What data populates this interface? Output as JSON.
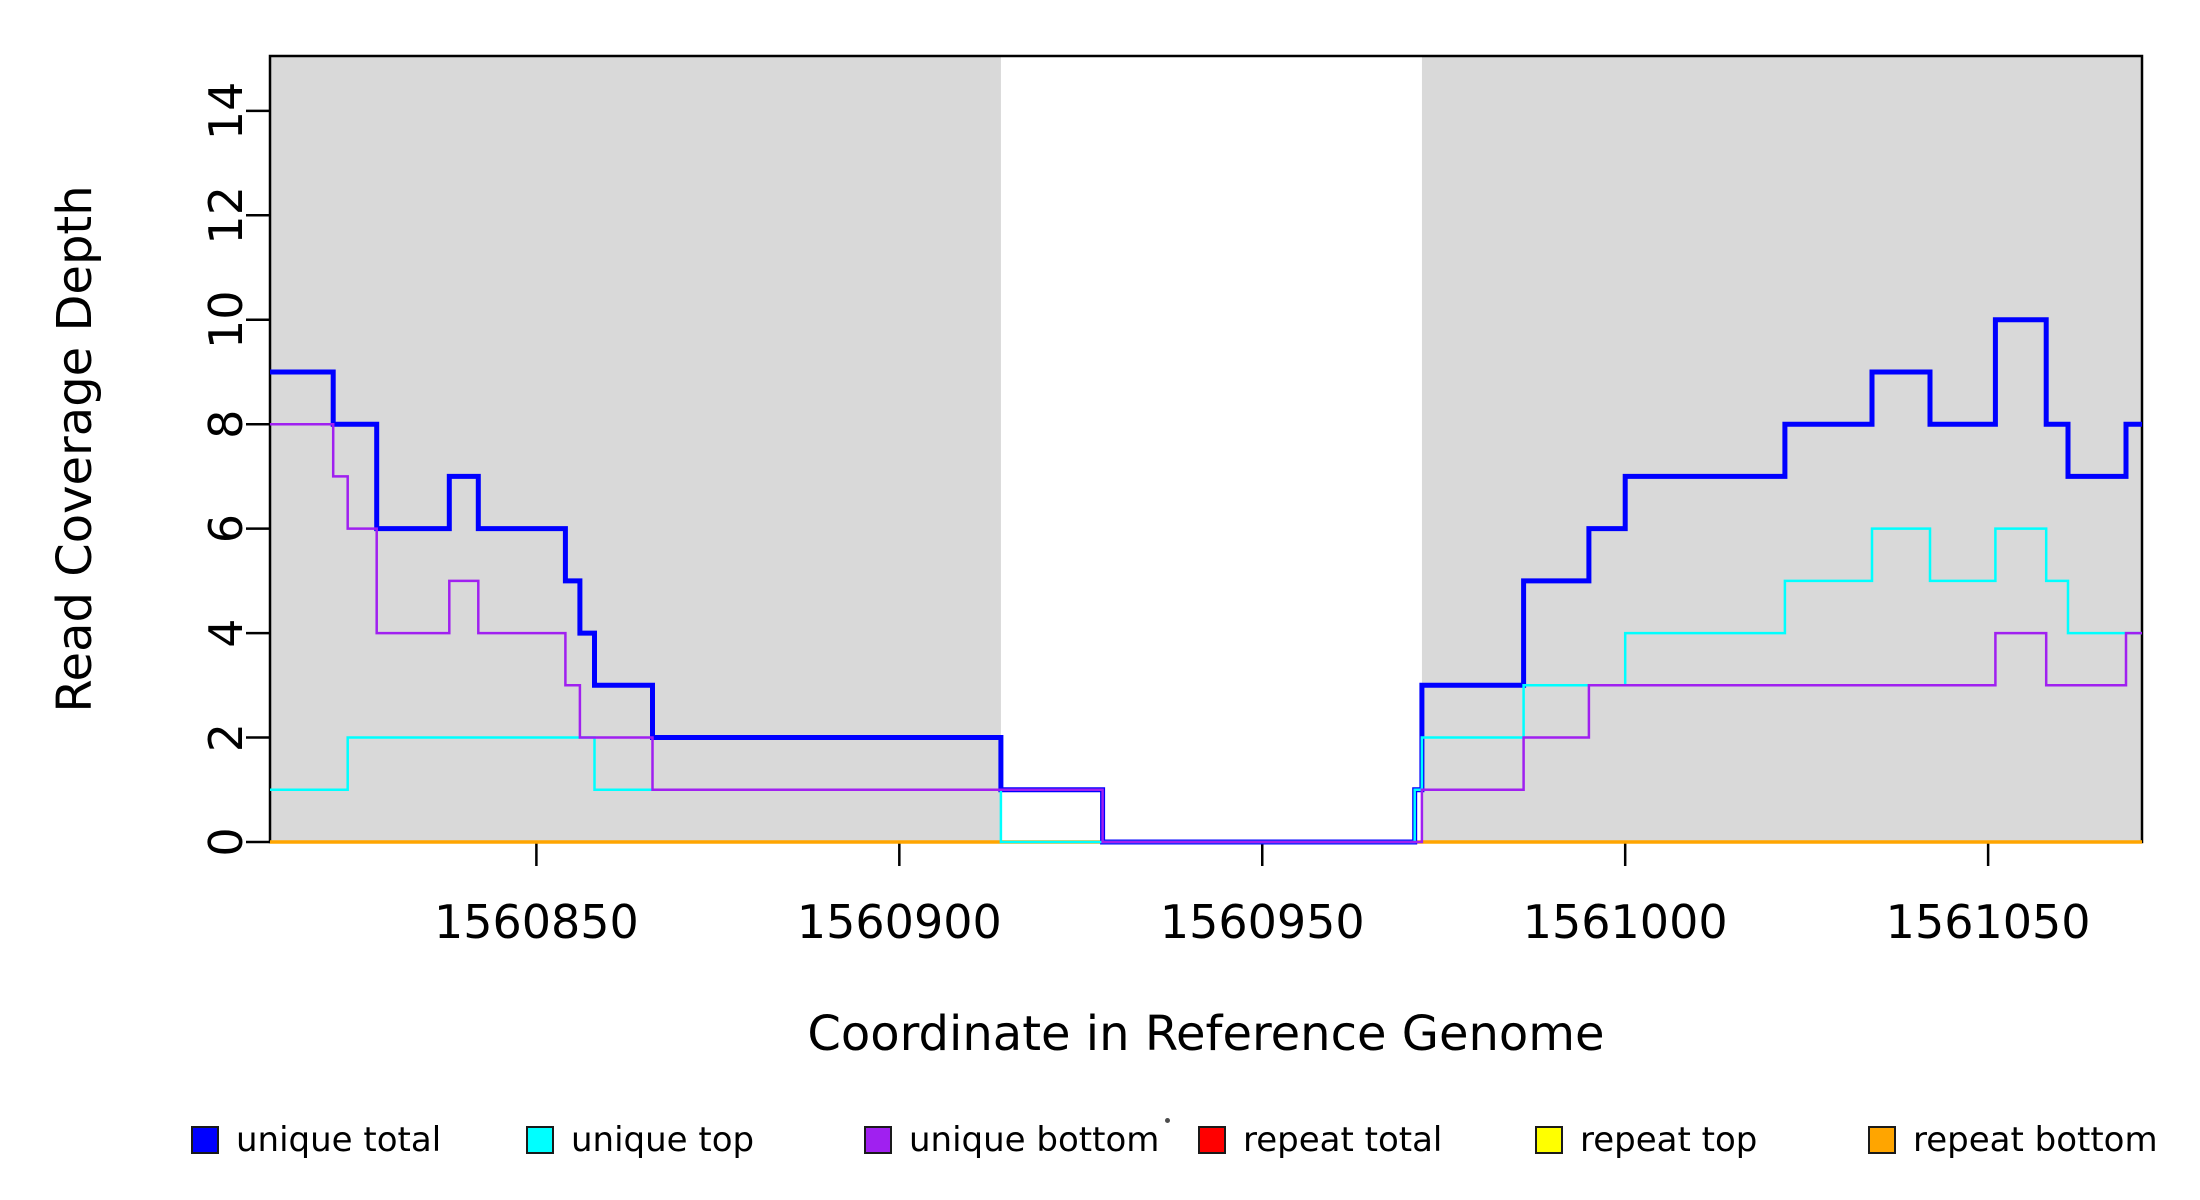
{
  "figure": {
    "background": "#ffffff",
    "plot_border_color": "#000000",
    "shading_color": "#d9d9d9"
  },
  "chart_data": {
    "type": "line",
    "subtype": "step",
    "title": "",
    "xlabel": "Coordinate in Reference Genome",
    "ylabel": "Read Coverage Depth",
    "xlim": [
      1560813.3,
      1561071.2
    ],
    "ylim": [
      0,
      15.05
    ],
    "x_ticks": [
      1560850,
      1560900,
      1560950,
      1561000,
      1561050
    ],
    "y_ticks": [
      0,
      2,
      4,
      6,
      8,
      10,
      12,
      14
    ],
    "grid": "off",
    "y_tick_labels_rotated": true,
    "shaded_regions": [
      {
        "x0": 1560813.3,
        "x1": 1560914,
        "color": "#d9d9d9"
      },
      {
        "x0": 1560972,
        "x1": 1561071.2,
        "color": "#d9d9d9"
      }
    ],
    "series": [
      {
        "name": "repeat total",
        "color": "#ff0000",
        "line_width": 2.5,
        "steps": [
          [
            1560813.3,
            0
          ]
        ]
      },
      {
        "name": "repeat top",
        "color": "#ffff00",
        "line_width": 2.5,
        "steps": [
          [
            1560813.3,
            0
          ]
        ]
      },
      {
        "name": "repeat bottom",
        "color": "#ffa500",
        "line_width": 3.5,
        "steps": [
          [
            1560813.3,
            0
          ]
        ]
      },
      {
        "name": "unique total",
        "color": "#0000ff",
        "line_width": 5,
        "steps": [
          [
            1560813.3,
            9
          ],
          [
            1560822,
            8
          ],
          [
            1560828,
            6
          ],
          [
            1560838,
            7
          ],
          [
            1560842,
            6
          ],
          [
            1560854,
            5
          ],
          [
            1560856,
            4
          ],
          [
            1560858,
            3
          ],
          [
            1560866,
            2
          ],
          [
            1560914,
            1
          ],
          [
            1560928,
            0
          ],
          [
            1560971,
            1
          ],
          [
            1560972,
            3
          ],
          [
            1560986,
            5
          ],
          [
            1560995,
            6
          ],
          [
            1561000,
            7
          ],
          [
            1561022,
            8
          ],
          [
            1561034,
            9
          ],
          [
            1561042,
            8
          ],
          [
            1561051,
            10
          ],
          [
            1561058,
            8
          ],
          [
            1561061,
            7
          ],
          [
            1561069,
            8
          ]
        ]
      },
      {
        "name": "unique top",
        "color": "#00ffff",
        "line_width": 2.5,
        "steps": [
          [
            1560813.3,
            1
          ],
          [
            1560824,
            2
          ],
          [
            1560858,
            1
          ],
          [
            1560914,
            0
          ],
          [
            1560971,
            1
          ],
          [
            1560972,
            2
          ],
          [
            1560986,
            3
          ],
          [
            1561000,
            4
          ],
          [
            1561022,
            5
          ],
          [
            1561034,
            6
          ],
          [
            1561042,
            5
          ],
          [
            1561051,
            6
          ],
          [
            1561058,
            5
          ],
          [
            1561061,
            4
          ]
        ]
      },
      {
        "name": "unique bottom",
        "color": "#a020f0",
        "line_width": 2.5,
        "steps": [
          [
            1560813.3,
            8
          ],
          [
            1560822,
            7
          ],
          [
            1560824,
            6
          ],
          [
            1560828,
            4
          ],
          [
            1560838,
            5
          ],
          [
            1560842,
            4
          ],
          [
            1560854,
            3
          ],
          [
            1560856,
            2
          ],
          [
            1560866,
            1
          ],
          [
            1560928,
            0
          ],
          [
            1560972,
            1
          ],
          [
            1560986,
            2
          ],
          [
            1560995,
            3
          ],
          [
            1561051,
            4
          ],
          [
            1561058,
            3
          ],
          [
            1561069,
            4
          ]
        ]
      }
    ],
    "legend": {
      "position": "bottom",
      "items": [
        {
          "label": "unique total",
          "color": "#0000ff"
        },
        {
          "label": "unique top",
          "color": "#00ffff"
        },
        {
          "label": "unique bottom",
          "color": "#a020f0"
        },
        {
          "label": "repeat total",
          "color": "#ff0000"
        },
        {
          "label": "repeat top",
          "color": "#ffff00"
        },
        {
          "label": "repeat bottom",
          "color": "#ffa500"
        }
      ]
    }
  }
}
